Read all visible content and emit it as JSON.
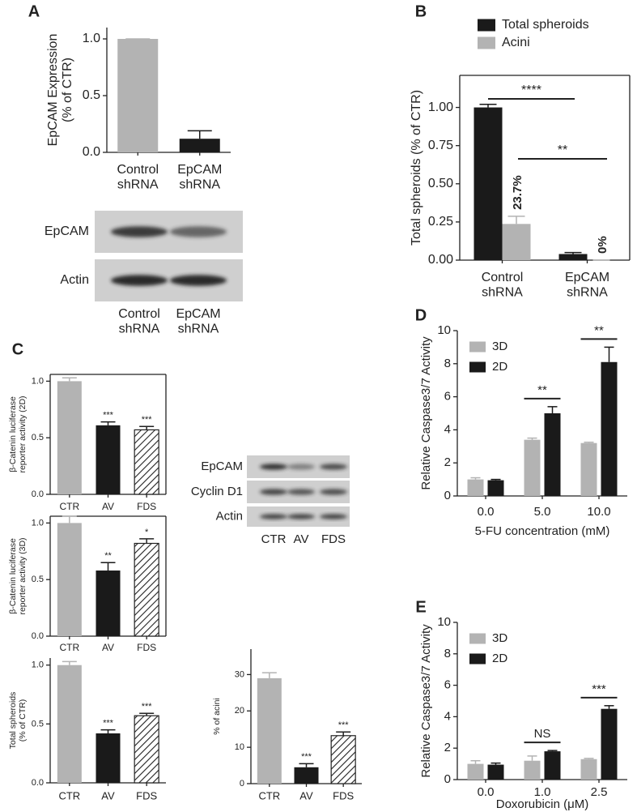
{
  "panel_labels": [
    "A",
    "B",
    "C",
    "D",
    "E"
  ],
  "blots": [
    {
      "rows": [
        "EpCAM",
        "Actin"
      ],
      "lanes": [
        "Control\nshRNA",
        "EpCAM\nshRNA"
      ]
    },
    {
      "rows": [
        "EpCAM",
        "Cyclin D1",
        "Actin"
      ],
      "lanes": [
        "CTR",
        "AV",
        "FDS"
      ]
    }
  ],
  "chart_data": [
    {
      "type": "bar",
      "ylabel": "EpCAM Expression\n(% of CTR)",
      "categories": [
        "Control\nshRNA",
        "EpCAM\nshRNA"
      ],
      "values": [
        1.0,
        0.12
      ],
      "errors": [
        0,
        0.07
      ],
      "colors": [
        "#b3b3b3",
        "#1a1a1a"
      ],
      "hatch": [
        false,
        false
      ],
      "ylim": [
        0,
        1.1
      ],
      "yticks": [
        {
          "value": 0,
          "label": "0.0"
        },
        {
          "value": 0.5,
          "label": "0.5"
        },
        {
          "value": 1,
          "label": "1.0"
        }
      ],
      "frame": false,
      "annotations": []
    },
    {
      "type": "grouped_bar",
      "ylabel": "Total spheroids (% of CTR)",
      "categories": [
        "Control\nshRNA",
        "EpCAM\nshRNA"
      ],
      "series": [
        {
          "name": "Total spheroids",
          "color": "#1a1a1a",
          "values": [
            1.0,
            0.04
          ],
          "errors": [
            0.02,
            0.01
          ]
        },
        {
          "name": "Acini",
          "color": "#b3b3b3",
          "values": [
            0.237,
            0
          ],
          "errors": [
            0.05,
            0
          ],
          "value_labels": [
            "23.7%",
            "0%"
          ]
        }
      ],
      "ylim": [
        0,
        1.21
      ],
      "yticks": [
        {
          "value": 0,
          "label": "0.00"
        },
        {
          "value": 0.25,
          "label": "0.25"
        },
        {
          "value": 0.5,
          "label": "0.50"
        },
        {
          "value": 0.75,
          "label": "0.75"
        },
        {
          "value": 1,
          "label": "1.00"
        }
      ],
      "legend": "top",
      "frame": true,
      "annotations": [
        "****",
        "**"
      ]
    },
    {
      "type": "bar",
      "ylabel": "β-Catenin luciferase\nreporter activity (2D)",
      "categories": [
        "CTR",
        "AV",
        "FDS"
      ],
      "values": [
        1.0,
        0.61,
        0.57
      ],
      "errors": [
        0.03,
        0.03,
        0.03
      ],
      "colors": [
        "#b3b3b3",
        "#1a1a1a",
        "#ffffff"
      ],
      "hatch": [
        false,
        false,
        true
      ],
      "ylim": [
        0,
        1.06
      ],
      "yticks": [
        {
          "value": 0,
          "label": "0.0"
        },
        {
          "value": 0.5,
          "label": "0.5"
        },
        {
          "value": 1,
          "label": "1.0"
        }
      ],
      "frame": true,
      "annotations": [
        {
          "x": "AV",
          "text": "***"
        },
        {
          "x": "FDS",
          "text": "***"
        }
      ]
    },
    {
      "type": "bar",
      "ylabel": "β-Catenin luciferase\nreporter activity (3D)",
      "categories": [
        "CTR",
        "AV",
        "FDS"
      ],
      "values": [
        1.0,
        0.58,
        0.82
      ],
      "errors": [
        0.06,
        0.07,
        0.04
      ],
      "colors": [
        "#b3b3b3",
        "#1a1a1a",
        "#ffffff"
      ],
      "hatch": [
        false,
        false,
        true
      ],
      "ylim": [
        0,
        1.06
      ],
      "yticks": [
        {
          "value": 0,
          "label": "0.0"
        },
        {
          "value": 0.5,
          "label": "0.5"
        },
        {
          "value": 1,
          "label": "1.0"
        }
      ],
      "frame": true,
      "annotations": [
        {
          "x": "AV",
          "text": "**"
        },
        {
          "x": "FDS",
          "text": "*"
        }
      ]
    },
    {
      "type": "bar",
      "ylabel": "Total spheroids\n(% of CTR)",
      "categories": [
        "CTR",
        "AV",
        "FDS"
      ],
      "values": [
        1.0,
        0.42,
        0.57
      ],
      "errors": [
        0.03,
        0.03,
        0.02
      ],
      "colors": [
        "#b3b3b3",
        "#1a1a1a",
        "#ffffff"
      ],
      "hatch": [
        false,
        false,
        true
      ],
      "ylim": [
        0,
        1.06
      ],
      "yticks": [
        {
          "value": 0,
          "label": "0.0"
        },
        {
          "value": 0.5,
          "label": "0.5"
        },
        {
          "value": 1,
          "label": "1.0"
        }
      ],
      "frame": false,
      "annotations": [
        {
          "x": "AV",
          "text": "***"
        },
        {
          "x": "FDS",
          "text": "***"
        }
      ]
    },
    {
      "type": "bar",
      "ylabel": "% of acini",
      "categories": [
        "CTR",
        "AV",
        "FDS"
      ],
      "values": [
        29,
        4.5,
        13.2
      ],
      "errors": [
        1.5,
        1,
        1
      ],
      "colors": [
        "#b3b3b3",
        "#1a1a1a",
        "#ffffff"
      ],
      "hatch": [
        false,
        false,
        true
      ],
      "ylim": [
        0,
        37
      ],
      "yticks": [
        0,
        10,
        20,
        30
      ],
      "frame": false,
      "annotations": [
        {
          "x": "AV",
          "text": "***"
        },
        {
          "x": "FDS",
          "text": "***"
        }
      ]
    },
    {
      "type": "grouped_bar",
      "ylabel": "Relative Caspase3/7 Activity",
      "xlabel": "5-FU concentration (mM)",
      "categories": [
        "0.0",
        "5.0",
        "10.0"
      ],
      "series": [
        {
          "name": "3D",
          "color": "#b3b3b3",
          "values": [
            1.0,
            3.4,
            3.2
          ],
          "errors": [
            0.1,
            0.1,
            0.05
          ]
        },
        {
          "name": "2D",
          "color": "#1a1a1a",
          "values": [
            0.95,
            5.0,
            8.1
          ],
          "errors": [
            0.05,
            0.4,
            0.9
          ]
        }
      ],
      "ylim": [
        0,
        10
      ],
      "yticks": [
        0,
        2,
        4,
        6,
        8,
        10
      ],
      "legend": "top-left",
      "frame": false,
      "annotations": [
        {
          "x": "5.0",
          "text": "**"
        },
        {
          "x": "10.0",
          "text": "**"
        }
      ]
    },
    {
      "type": "grouped_bar",
      "ylabel": "Relative Caspase3/7 Activity",
      "xlabel": "Doxorubicin (μM)",
      "categories": [
        "0.0",
        "1.0",
        "2.5"
      ],
      "series": [
        {
          "name": "3D",
          "color": "#b3b3b3",
          "values": [
            1.0,
            1.2,
            1.3
          ],
          "errors": [
            0.2,
            0.3,
            0.05
          ]
        },
        {
          "name": "2D",
          "color": "#1a1a1a",
          "values": [
            0.95,
            1.8,
            4.5
          ],
          "errors": [
            0.1,
            0.05,
            0.2
          ]
        }
      ],
      "ylim": [
        0,
        10
      ],
      "yticks": [
        0,
        2,
        4,
        6,
        8,
        10
      ],
      "legend": "top-left",
      "frame": false,
      "annotations": [
        {
          "x": "1.0",
          "text": "NS"
        },
        {
          "x": "2.5",
          "text": "***"
        }
      ]
    }
  ]
}
